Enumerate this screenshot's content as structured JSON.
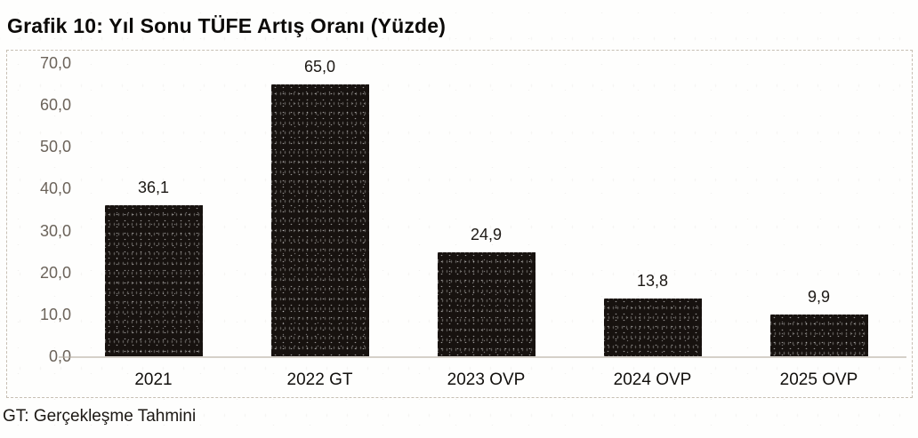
{
  "page": {
    "title": "Grafik 10: Yıl Sonu TÜFE Artış Oranı (Yüzde)",
    "footnote": "GT: Gerçekleşme Tahmini"
  },
  "chart_data": {
    "type": "bar",
    "title": "Grafik 10: Yıl Sonu TÜFE Artış Oranı (Yüzde)",
    "categories": [
      "2021",
      "2022 GT",
      "2023 OVP",
      "2024 OVP",
      "2025 OVP"
    ],
    "values": [
      36.1,
      65.0,
      24.9,
      13.8,
      9.9
    ],
    "value_labels": [
      "36,1",
      "65,0",
      "24,9",
      "13,8",
      "9,9"
    ],
    "xlabel": "",
    "ylabel": "",
    "ylim": [
      0,
      70
    ],
    "ytick_step": 10,
    "ytick_labels": [
      "70,0",
      "60,0",
      "50,0",
      "40,0",
      "30,0",
      "20,0",
      "10,0",
      "0,0"
    ],
    "grid": false,
    "legend": "none",
    "bar_color": "#17120f",
    "footnote": "GT: Gerçekleşme Tahmini"
  }
}
